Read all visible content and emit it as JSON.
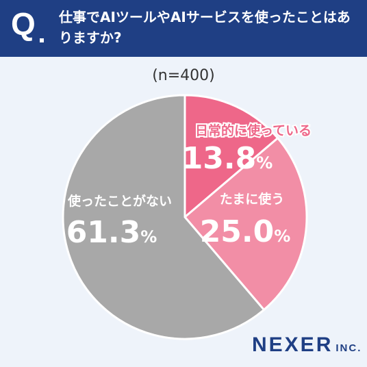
{
  "header": {
    "q_label": "Q",
    "question": "仕事でAIツールやAIサービスを使ったことはありますか?"
  },
  "chart_data": {
    "type": "pie",
    "title": "(n=400)",
    "slices": [
      {
        "label": "日常的に使っている",
        "value": 13.8,
        "value_text": "13.8",
        "unit": "%",
        "color": "#ee6789"
      },
      {
        "label": "たまに使う",
        "value": 25.0,
        "value_text": "25.0",
        "unit": "%",
        "color": "#f28ea6"
      },
      {
        "label": "使ったことがない",
        "value": 61.3,
        "value_text": "61.3",
        "unit": "%",
        "color": "#a8a8a8"
      }
    ]
  },
  "logo": {
    "main": "NEXER",
    "suffix": "INC."
  }
}
